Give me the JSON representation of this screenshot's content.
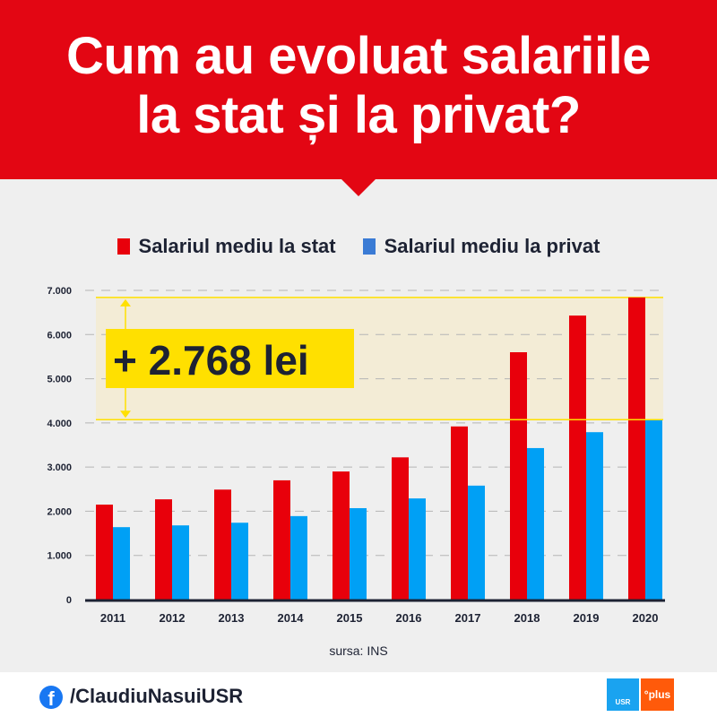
{
  "title_line1": "Cum au evoluat salariile",
  "title_line2": "la stat și la privat?",
  "footer": {
    "handle": "/ClaudiuNasuiUSR",
    "logo_usr": "USR",
    "logo_plus": "°plus",
    "social_icon": "facebook-icon"
  },
  "colors": {
    "header": "#e30613",
    "stat": "#e8000b",
    "privat": "#00a0f5",
    "band": "#f3ecd6",
    "highlight": "#ffe000"
  },
  "chart_data": {
    "type": "bar",
    "categories": [
      "2011",
      "2012",
      "2013",
      "2014",
      "2015",
      "2016",
      "2017",
      "2018",
      "2019",
      "2020"
    ],
    "series": [
      {
        "name": "Salariul mediu la stat",
        "values": [
          2150,
          2270,
          2490,
          2700,
          2900,
          3220,
          3920,
          5600,
          6430,
          6840
        ]
      },
      {
        "name": "Salariul mediu la privat",
        "values": [
          1640,
          1680,
          1740,
          1890,
          2070,
          2290,
          2580,
          3430,
          3790,
          4072
        ]
      }
    ],
    "ylim": [
      0,
      7000
    ],
    "yticks": [
      "0",
      "1.000",
      "2.000",
      "3.000",
      "4.000",
      "5.000",
      "6.000",
      "7.000"
    ],
    "grid": true,
    "legend": "top",
    "annotation": "+ 2.768  lei",
    "source": "sursa: INS"
  }
}
